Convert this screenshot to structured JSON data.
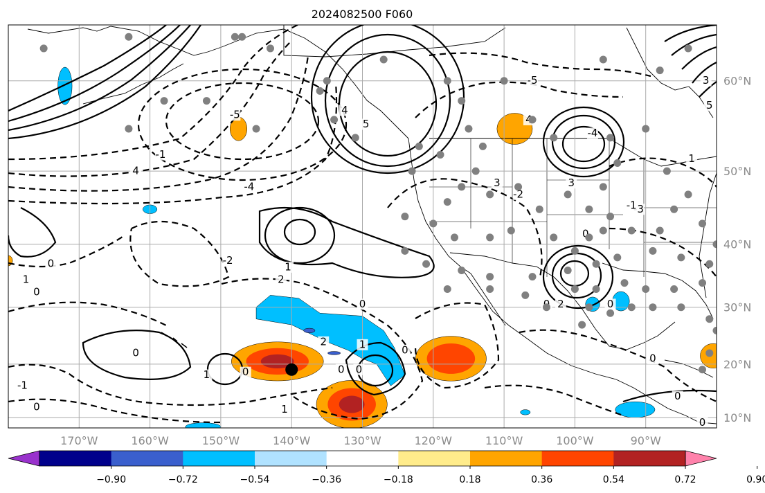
{
  "title": "2024082500 F060",
  "map": {
    "lon_range": [
      -180,
      -80
    ],
    "lat_range": [
      8,
      65
    ],
    "lon_ticks": [
      "170°W",
      "160°W",
      "150°W",
      "140°W",
      "130°W",
      "120°W",
      "110°W",
      "100°W",
      "90°W"
    ],
    "lat_ticks": [
      "60°N",
      "50°N",
      "40°N",
      "30°N",
      "20°N",
      "10°N"
    ],
    "grid": true,
    "land_color": "#ffffff",
    "ocean_color": "#ffffff"
  },
  "colorbar": {
    "tick_labels": [
      "−0.90",
      "−0.72",
      "−0.54",
      "−0.36",
      "−0.18",
      "0.18",
      "0.36",
      "0.54",
      "0.72",
      "0.90"
    ],
    "colors": [
      "#9932cc",
      "#00008b",
      "#3a5fcd",
      "#00bfff",
      "#b0e2ff",
      "#ffffff",
      "#ffec8b",
      "#ffa500",
      "#ff4500",
      "#b22222",
      "#ff82ab"
    ],
    "extend": "both"
  },
  "contour_labels": [
    {
      "text": "0",
      "lon": -174.0,
      "lat": 37.0
    },
    {
      "text": "0",
      "lon": -176.0,
      "lat": 32.5
    },
    {
      "text": "1",
      "lon": -177.5,
      "lat": 34.5
    },
    {
      "text": "-1",
      "lon": -178.0,
      "lat": 16.0
    },
    {
      "text": "0",
      "lon": -176.0,
      "lat": 12.0
    },
    {
      "text": "0",
      "lon": -162.0,
      "lat": 22.0
    },
    {
      "text": "1",
      "lon": -152.0,
      "lat": 18.0
    },
    {
      "text": "0",
      "lon": -146.5,
      "lat": 18.5
    },
    {
      "text": "1",
      "lon": -141.0,
      "lat": 11.5
    },
    {
      "text": "2",
      "lon": -141.5,
      "lat": 34.5
    },
    {
      "text": "1",
      "lon": -140.5,
      "lat": 36.5
    },
    {
      "text": "0",
      "lon": -130.0,
      "lat": 30.5
    },
    {
      "text": "1",
      "lon": -130.0,
      "lat": 23.5
    },
    {
      "text": "2",
      "lon": -135.5,
      "lat": 24.0
    },
    {
      "text": "0",
      "lon": -133.0,
      "lat": 19.0
    },
    {
      "text": "0",
      "lon": -130.5,
      "lat": 19.0
    },
    {
      "text": "0",
      "lon": -124.0,
      "lat": 22.5
    },
    {
      "text": "-2",
      "lon": -149.0,
      "lat": 37.5
    },
    {
      "text": "-4",
      "lon": -146.0,
      "lat": 48.0
    },
    {
      "text": "-5",
      "lon": -148.0,
      "lat": 56.5
    },
    {
      "text": "4",
      "lon": -162.0,
      "lat": 50.0
    },
    {
      "text": "-1",
      "lon": -158.5,
      "lat": 52.0
    },
    {
      "text": "4",
      "lon": -132.5,
      "lat": 57.0
    },
    {
      "text": "5",
      "lon": -129.5,
      "lat": 55.5
    },
    {
      "text": "3",
      "lon": -111.0,
      "lat": 48.5
    },
    {
      "text": "4",
      "lon": -106.5,
      "lat": 56.0
    },
    {
      "text": "-5",
      "lon": -106.0,
      "lat": 60.0
    },
    {
      "text": "-4",
      "lon": -97.5,
      "lat": 54.5
    },
    {
      "text": "3",
      "lon": -100.5,
      "lat": 48.5
    },
    {
      "text": "-2",
      "lon": -108.0,
      "lat": 47.0
    },
    {
      "text": "-3",
      "lon": -91.0,
      "lat": 45.0
    },
    {
      "text": "-1",
      "lon": -92.0,
      "lat": 45.5
    },
    {
      "text": "0",
      "lon": -98.5,
      "lat": 41.5
    },
    {
      "text": "2",
      "lon": -102.0,
      "lat": 30.5
    },
    {
      "text": "0",
      "lon": -104.0,
      "lat": 30.5
    },
    {
      "text": "0",
      "lon": -95.0,
      "lat": 30.5
    },
    {
      "text": "3",
      "lon": -81.5,
      "lat": 60.0
    },
    {
      "text": "5",
      "lon": -81.0,
      "lat": 57.5
    },
    {
      "text": "1",
      "lon": -83.5,
      "lat": 51.5
    },
    {
      "text": "0",
      "lon": -82.0,
      "lat": 9.0
    },
    {
      "text": "0",
      "lon": -85.5,
      "lat": 14.0
    },
    {
      "text": "0",
      "lon": -89.0,
      "lat": 21.0
    }
  ],
  "markers": {
    "tc_center": {
      "lon": -140.0,
      "lat": 19.0
    },
    "stations": [
      [
        -175,
        63
      ],
      [
        -163,
        64
      ],
      [
        -158,
        58
      ],
      [
        -163,
        55
      ],
      [
        -148,
        64
      ],
      [
        -143,
        63
      ],
      [
        -152,
        58
      ],
      [
        -135,
        60
      ],
      [
        -127,
        62
      ],
      [
        -118,
        60
      ],
      [
        -116,
        58
      ],
      [
        -110,
        60
      ],
      [
        -115,
        55
      ],
      [
        -113,
        53
      ],
      [
        -106,
        56
      ],
      [
        -103,
        54
      ],
      [
        -95,
        54
      ],
      [
        -94,
        51
      ],
      [
        -90,
        55
      ],
      [
        -88,
        61
      ],
      [
        -87,
        50
      ],
      [
        -84,
        63
      ],
      [
        -96,
        62
      ],
      [
        -122,
        53
      ],
      [
        -119,
        52
      ],
      [
        -123,
        50
      ],
      [
        -114,
        50
      ],
      [
        -118,
        46
      ],
      [
        -116,
        48
      ],
      [
        -112,
        47
      ],
      [
        -108,
        48
      ],
      [
        -105,
        45
      ],
      [
        -101,
        47
      ],
      [
        -98,
        45
      ],
      [
        -96,
        48
      ],
      [
        -124,
        44
      ],
      [
        -120,
        43
      ],
      [
        -117,
        41
      ],
      [
        -112,
        41
      ],
      [
        -109,
        42
      ],
      [
        -103,
        41
      ],
      [
        -98,
        41
      ],
      [
        -96,
        42
      ],
      [
        -92,
        42
      ],
      [
        -88,
        42
      ],
      [
        -86,
        45
      ],
      [
        -84,
        47
      ],
      [
        -82,
        43
      ],
      [
        -80,
        40
      ],
      [
        -124,
        39
      ],
      [
        -121,
        37
      ],
      [
        -116,
        36
      ],
      [
        -112,
        35
      ],
      [
        -106,
        35
      ],
      [
        -101,
        36
      ],
      [
        -97,
        37
      ],
      [
        -94,
        38
      ],
      [
        -89,
        39
      ],
      [
        -85,
        38
      ],
      [
        -81,
        37
      ],
      [
        -118,
        33
      ],
      [
        -112,
        33
      ],
      [
        -107,
        32
      ],
      [
        -100,
        33
      ],
      [
        -97,
        33
      ],
      [
        -93,
        34
      ],
      [
        -90,
        33
      ],
      [
        -86,
        33
      ],
      [
        -82,
        34
      ],
      [
        -104,
        30
      ],
      [
        -98,
        30
      ],
      [
        -95,
        29
      ],
      [
        -92,
        30
      ],
      [
        -89,
        30
      ],
      [
        -85,
        30
      ],
      [
        -81,
        28
      ],
      [
        -80,
        26
      ],
      [
        -99,
        27
      ],
      [
        -81,
        22
      ],
      [
        -82,
        19
      ],
      [
        -145,
        55
      ],
      [
        -147,
        64
      ],
      [
        -136,
        59
      ],
      [
        -134,
        56
      ],
      [
        -131,
        54
      ],
      [
        -100,
        39
      ],
      [
        -95,
        44
      ]
    ]
  },
  "shading": {
    "pos_regions": [
      {
        "name": "positive-blob-west-hawaii",
        "lon": -142.0,
        "lat": 20.5,
        "rx": 6.5,
        "ry": 3.5,
        "levels": [
          "#ffa500",
          "#ff4500",
          "#b22222"
        ]
      },
      {
        "name": "positive-blob-south",
        "lon": -131.5,
        "lat": 12.5,
        "rx": 5.0,
        "ry": 4.5,
        "levels": [
          "#ffa500",
          "#ff4500",
          "#b22222"
        ]
      },
      {
        "name": "positive-blob-baja",
        "lon": -117.5,
        "lat": 21.0,
        "rx": 5.0,
        "ry": 4.0,
        "levels": [
          "#ffa500",
          "#ff4500"
        ]
      },
      {
        "name": "positive-blob-canada",
        "lon": -108.5,
        "lat": 55.0,
        "rx": 2.5,
        "ry": 1.7,
        "levels": [
          "#ffa500"
        ]
      },
      {
        "name": "positive-blob-alaska",
        "lon": -147.5,
        "lat": 55.0,
        "rx": 1.2,
        "ry": 1.3,
        "levels": [
          "#ffa500"
        ]
      },
      {
        "name": "positive-blob-gulf",
        "lon": -80.5,
        "lat": 21.5,
        "rx": 1.8,
        "ry": 2.2,
        "levels": [
          "#ffa500"
        ]
      },
      {
        "name": "positive-blob-dateline",
        "lon": -180.0,
        "lat": 37.5,
        "rx": 0.6,
        "ry": 0.8,
        "levels": [
          "#ffa500"
        ]
      }
    ],
    "neg_regions": [
      {
        "name": "negative-band-central-pacific",
        "points": [
          [
            -145,
            30
          ],
          [
            -143,
            32
          ],
          [
            -139,
            31.5
          ],
          [
            -136,
            29
          ],
          [
            -130,
            28.5
          ],
          [
            -127,
            26
          ],
          [
            -125.5,
            23
          ],
          [
            -124,
            18
          ],
          [
            -126,
            16
          ],
          [
            -128,
            20
          ],
          [
            -130,
            21
          ],
          [
            -132,
            22.5
          ],
          [
            -135,
            24
          ],
          [
            -140,
            27
          ],
          [
            -145,
            28
          ]
        ],
        "levels": [
          "#00bfff"
        ]
      },
      {
        "name": "negative-cell-texas",
        "lon": -93.5,
        "lat": 31.0,
        "rx": 1.2,
        "ry": 1.6,
        "levels": [
          "#00bfff"
        ]
      },
      {
        "name": "negative-cell-louisiana",
        "lon": -97.5,
        "lat": 30.5,
        "rx": 1.0,
        "ry": 1.2,
        "levels": [
          "#00bfff"
        ]
      },
      {
        "name": "negative-cell-central-america",
        "lon": -91.5,
        "lat": 11.5,
        "rx": 2.8,
        "ry": 1.5,
        "levels": [
          "#00bfff"
        ]
      },
      {
        "name": "negative-cell-alaska",
        "lon": -172.0,
        "lat": 59.5,
        "rx": 1.0,
        "ry": 1.8,
        "levels": [
          "#00bfff"
        ]
      },
      {
        "name": "negative-cell-pacific-north",
        "lon": -160.0,
        "lat": 45.0,
        "rx": 1.0,
        "ry": 0.6,
        "levels": [
          "#00bfff"
        ]
      },
      {
        "name": "negative-cell-pacific-mid",
        "lon": -107.0,
        "lat": 11.0,
        "rx": 0.7,
        "ry": 0.5,
        "levels": [
          "#00bfff"
        ]
      },
      {
        "name": "negative-cell-south-edge",
        "lon": -152.5,
        "lat": 8.2,
        "rx": 2.5,
        "ry": 0.8,
        "levels": [
          "#00bfff"
        ]
      },
      {
        "name": "negative-cell-sub",
        "lon": -137.5,
        "lat": 26.0,
        "rx": 0.8,
        "ry": 0.4,
        "levels": [
          "#3a5fcd"
        ]
      },
      {
        "name": "negative-cell-sub2",
        "lon": -134.0,
        "lat": 22.0,
        "rx": 0.9,
        "ry": 0.3,
        "levels": [
          "#3a5fcd"
        ]
      }
    ]
  }
}
